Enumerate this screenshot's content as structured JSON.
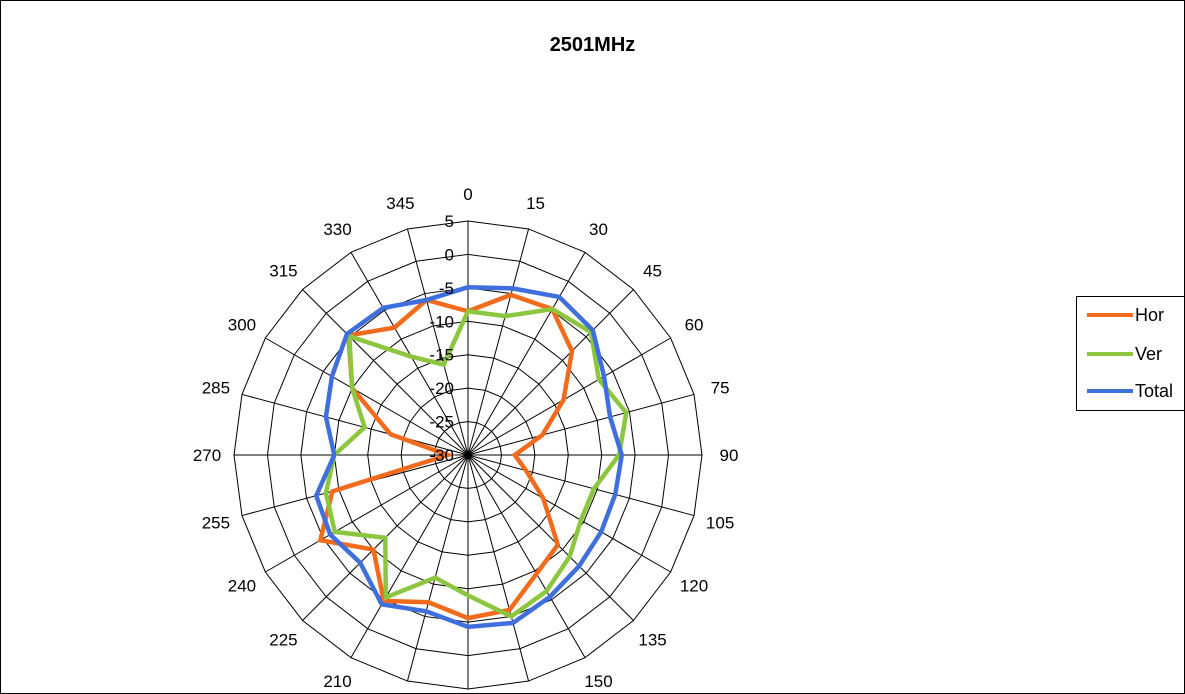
{
  "chart_data": {
    "type": "radar",
    "title": "2501MHz",
    "angles": [
      0,
      15,
      30,
      45,
      60,
      75,
      90,
      105,
      120,
      135,
      150,
      165,
      180,
      195,
      210,
      225,
      240,
      255,
      270,
      285,
      300,
      315,
      330,
      345
    ],
    "angle_labels": [
      "0",
      "15",
      "30",
      "45",
      "60",
      "75",
      "90",
      "105",
      "120",
      "135",
      "150",
      "165",
      "180",
      "195",
      "210",
      "225",
      "240",
      "255",
      "270",
      "285",
      "300",
      "315",
      "330",
      "345"
    ],
    "radial_ticks": [
      "5",
      "0",
      "-5",
      "-10",
      "-15",
      "-20",
      "-25",
      "-30"
    ],
    "rlim": [
      -30,
      5
    ],
    "grid": true,
    "legend_position": "right",
    "series": [
      {
        "name": "Hor",
        "color": "#f26b1d",
        "values": [
          -8.5,
          -5.2,
          -4.8,
          -8,
          -13.5,
          -18.5,
          -23,
          -21,
          -17,
          -11,
          -9.5,
          -6,
          -5.6,
          -7.2,
          -4.8,
          -10,
          -4.5,
          -9,
          -27,
          -18,
          -10,
          -4.7,
          -8,
          -6
        ]
      },
      {
        "name": "Ver",
        "color": "#8cc63f",
        "values": [
          -8.5,
          -8.5,
          -4.8,
          -4,
          -7.4,
          -5.5,
          -7.4,
          -10.5,
          -10.5,
          -8.5,
          -6.5,
          -5,
          -9,
          -11,
          -5.4,
          -12.5,
          -7,
          -8,
          -10,
          -14,
          -10,
          -4.9,
          -13,
          -16
        ]
      },
      {
        "name": "Total",
        "color": "#3f6fdc",
        "values": [
          -4.9,
          -4.2,
          -2.7,
          -3.6,
          -6.5,
          -8,
          -7,
          -7.2,
          -7,
          -6.5,
          -5.5,
          -4,
          -4.3,
          -5.8,
          -4.2,
          -7.2,
          -6.2,
          -6.5,
          -10,
          -8,
          -6.5,
          -4.4,
          -4.6,
          -6
        ]
      }
    ]
  }
}
